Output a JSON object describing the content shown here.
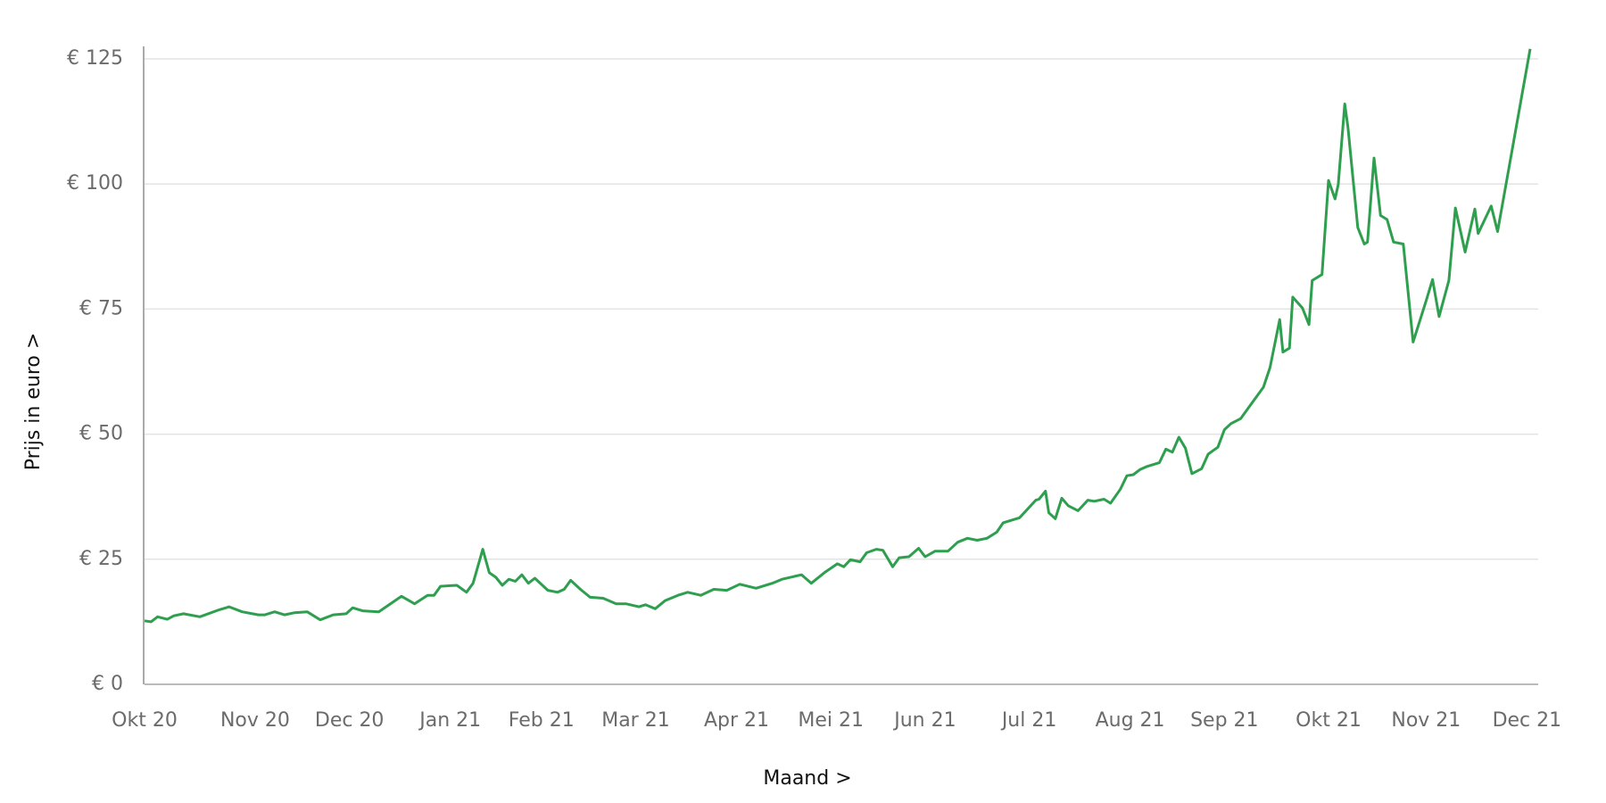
{
  "chart_data": {
    "type": "line",
    "xlabel": "Maand >",
    "ylabel": "Prijs in euro >",
    "color": "#2e9e4f",
    "grid": true,
    "xlim": [
      0,
      426
    ],
    "xticks": [
      {
        "value": 0,
        "label": "Okt 20"
      },
      {
        "value": 34,
        "label": "Nov 20"
      },
      {
        "value": 63,
        "label": "Dec 20"
      },
      {
        "value": 94,
        "label": "Jan 21"
      },
      {
        "value": 122,
        "label": "Feb 21"
      },
      {
        "value": 151,
        "label": "Mar 21"
      },
      {
        "value": 182,
        "label": "Apr 21"
      },
      {
        "value": 211,
        "label": "Mei 21"
      },
      {
        "value": 240,
        "label": "Jun 21"
      },
      {
        "value": 272,
        "label": "Jul 21"
      },
      {
        "value": 303,
        "label": "Aug 21"
      },
      {
        "value": 332,
        "label": "Sep 21"
      },
      {
        "value": 364,
        "label": "Okt 21"
      },
      {
        "value": 394,
        "label": "Nov 21"
      },
      {
        "value": 425,
        "label": "Dec 21"
      }
    ],
    "ylim": [
      0,
      127.5
    ],
    "yticks": [
      {
        "value": 0,
        "label": "€ 0"
      },
      {
        "value": 25,
        "label": "€ 25"
      },
      {
        "value": 50,
        "label": "€ 50"
      },
      {
        "value": 75,
        "label": "€ 75"
      },
      {
        "value": 100,
        "label": "€ 100"
      },
      {
        "value": 125,
        "label": "€ 125"
      }
    ],
    "x": [
      0,
      2,
      4,
      7,
      9,
      12,
      17,
      23,
      26,
      30,
      35,
      37,
      40,
      43,
      46,
      50,
      54,
      58,
      62,
      64,
      67,
      72,
      79,
      83,
      87,
      89,
      91,
      96,
      99,
      101,
      104,
      106,
      108,
      110,
      112,
      114,
      116,
      118,
      120,
      124,
      127,
      129,
      131,
      134,
      137,
      141,
      145,
      148,
      152,
      154,
      157,
      160,
      164,
      167,
      171,
      175,
      179,
      183,
      188,
      193,
      196,
      202,
      205,
      209,
      213,
      215,
      217,
      220,
      222,
      225,
      227,
      230,
      232,
      235,
      238,
      240,
      243,
      247,
      250,
      253,
      256,
      259,
      262,
      264,
      269,
      274,
      275,
      277,
      278,
      280,
      282,
      284,
      287,
      290,
      292,
      295,
      297,
      300,
      302,
      304,
      306,
      308,
      312,
      314,
      316,
      318,
      320,
      322,
      325,
      327,
      330,
      332,
      334,
      337,
      344,
      346,
      349,
      350,
      352,
      353,
      356,
      358,
      359,
      362,
      364,
      366,
      367,
      369,
      370,
      373,
      375,
      376,
      378,
      380,
      382,
      384,
      387,
      390,
      394,
      396,
      398,
      401,
      403,
      406,
      409,
      410,
      414,
      416,
      426
    ],
    "values": [
      12.7,
      12.5,
      13.5,
      13,
      13.7,
      14.1,
      13.5,
      14.9,
      15.5,
      14.5,
      13.9,
      13.9,
      14.5,
      13.9,
      14.3,
      14.5,
      12.9,
      13.9,
      14.1,
      15.3,
      14.7,
      14.5,
      17.6,
      16.1,
      17.8,
      17.8,
      19.6,
      19.8,
      18.4,
      20.2,
      27,
      22.3,
      21.4,
      19.8,
      21,
      20.6,
      21.9,
      20.2,
      21.2,
      18.8,
      18.4,
      19,
      20.8,
      19,
      17.4,
      17.2,
      16.1,
      16.1,
      15.5,
      15.9,
      15.1,
      16.7,
      17.8,
      18.4,
      17.8,
      19,
      18.8,
      20,
      19.2,
      20.2,
      21,
      21.9,
      20.2,
      22.3,
      24.1,
      23.5,
      24.9,
      24.5,
      26.3,
      27,
      26.8,
      23.5,
      25.3,
      25.5,
      27.2,
      25.5,
      26.6,
      26.6,
      28.4,
      29.2,
      28.8,
      29.2,
      30.4,
      32.3,
      33.3,
      36.8,
      37,
      38.6,
      34.3,
      33.1,
      37.2,
      35.7,
      34.7,
      36.8,
      36.6,
      37,
      36.2,
      39,
      41.7,
      41.9,
      42.9,
      43.5,
      44.3,
      47,
      46.4,
      49.4,
      47.2,
      42.1,
      43.1,
      46,
      47.4,
      50.9,
      52.1,
      53.1,
      59.4,
      63.3,
      72.9,
      66.4,
      67.2,
      77.4,
      75.2,
      71.9,
      80.7,
      81.9,
      100.7,
      97,
      99.9,
      116,
      111.3,
      91.3,
      88,
      88.4,
      105.2,
      93.7,
      92.9,
      88.4,
      88,
      68.4,
      76.6,
      80.9,
      73.5,
      80.7,
      95.2,
      86.4,
      95,
      90.1,
      95.6,
      90.5,
      127
    ]
  }
}
